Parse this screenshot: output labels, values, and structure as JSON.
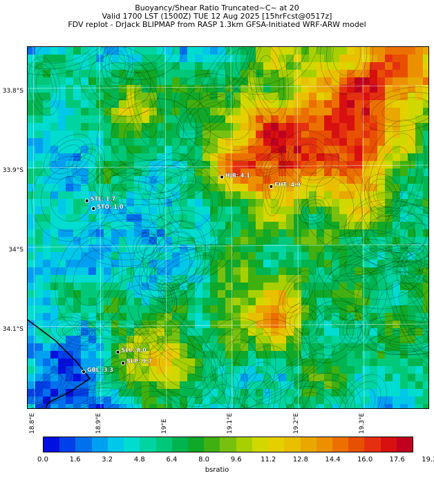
{
  "title": {
    "line1": "Buoyancy/Shear Ratio Truncated~C~    at 20",
    "line2": "Valid 1700 LST (1500Z) TUE 12 Aug 2025 [15hrFcst@0517z]",
    "line3": "FDV replot - DrJack BLIPMAP from RASP 1.3km GFSA-Initiated WRF-ARW model"
  },
  "map": {
    "lat_labels": [
      "33.8°S",
      "33.9°S",
      "34°S",
      "34.1°S"
    ],
    "lon_labels": [
      "18.8°E",
      "18.9°E",
      "19°E",
      "19.1°E",
      "19.2°E",
      "19.3°E"
    ],
    "stations": [
      {
        "label": "HJB: 4.1",
        "lon": 19.08,
        "lat": -33.91
      },
      {
        "label": "FHT: 4.9",
        "lon": 19.155,
        "lat": -33.922
      },
      {
        "label": "STL: 1.7",
        "lon": 18.875,
        "lat": -33.94
      },
      {
        "label": "STO: 1.0",
        "lon": 18.885,
        "lat": -33.95
      },
      {
        "label": "SLL: 8.0",
        "lon": 18.922,
        "lat": -34.132
      },
      {
        "label": "SLP: 9.7",
        "lon": 18.93,
        "lat": -34.146
      },
      {
        "label": "GBL: 3.3",
        "lon": 18.87,
        "lat": -34.157
      }
    ],
    "extent": {
      "lon": [
        18.785,
        19.396
      ],
      "lat": [
        -33.745,
        -34.205
      ]
    }
  },
  "colorbar": {
    "label": "bsratio",
    "ticks": [
      "0.0",
      "1.6",
      "3.2",
      "4.8",
      "6.4",
      "8.0",
      "9.6",
      "11.2",
      "12.8",
      "14.4",
      "16.0",
      "17.6",
      "19.2"
    ],
    "colors": [
      "#0010e0",
      "#0040e8",
      "#0070ec",
      "#00a0f0",
      "#00c8e8",
      "#00dcd0",
      "#00d4a0",
      "#00c878",
      "#00b450",
      "#10a828",
      "#40b010",
      "#78c010",
      "#a8d000",
      "#d0d800",
      "#e4d000",
      "#e8c000",
      "#e8a800",
      "#ec9000",
      "#ec7000",
      "#e85000",
      "#e43010",
      "#d81010",
      "#c00020"
    ]
  }
}
